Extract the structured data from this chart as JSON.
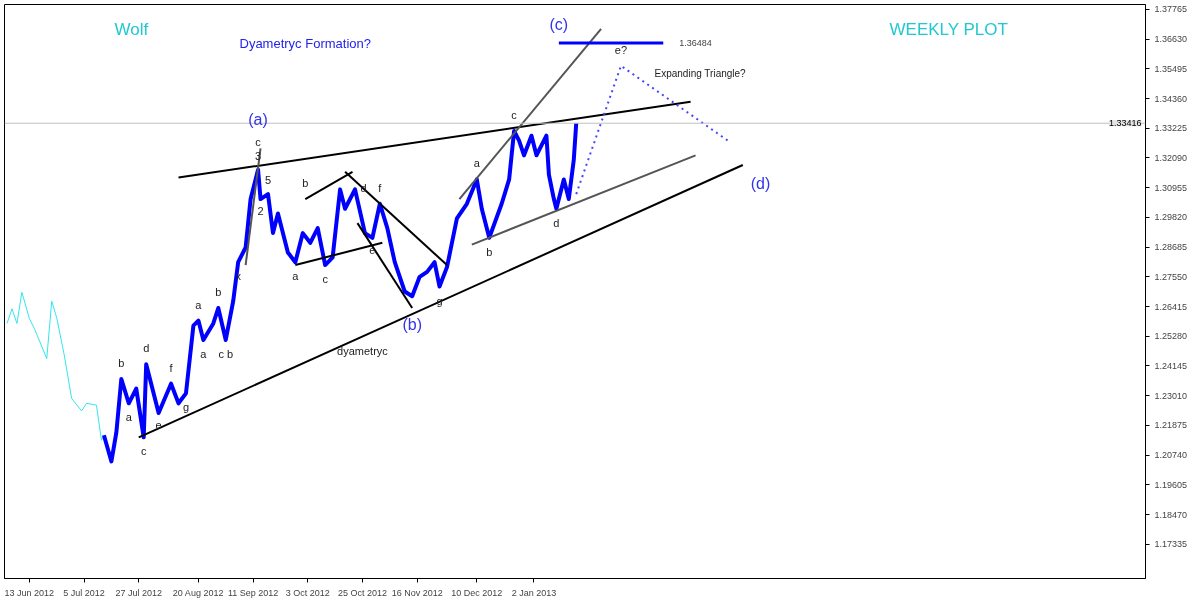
{
  "chart_data": {
    "type": "line",
    "title": "Wolf",
    "subtitle": "WEEKLY PLOT",
    "xlim": [
      "2012-06-03",
      "2013-09-05"
    ],
    "ylim": [
      1.1603,
      1.3795
    ],
    "xticks": [
      {
        "value": "2012-06-13",
        "label": "13 Jun 2012"
      },
      {
        "value": "2012-07-05",
        "label": "5 Jul 2012"
      },
      {
        "value": "2012-07-27",
        "label": "27 Jul 2012"
      },
      {
        "value": "2012-08-20",
        "label": "20 Aug 2012"
      },
      {
        "value": "2012-09-11",
        "label": "11 Sep 2012"
      },
      {
        "value": "2012-10-03",
        "label": "3 Oct 2012"
      },
      {
        "value": "2012-10-25",
        "label": "25 Oct 2012"
      },
      {
        "value": "2012-11-16",
        "label": "16 Nov 2012"
      },
      {
        "value": "2012-12-10",
        "label": "10 Dec 2012"
      },
      {
        "value": "2013-01-02",
        "label": "2 Jan 2013"
      }
    ],
    "yticks": [
      {
        "value": 1.17335,
        "label": "1.17335"
      },
      {
        "value": 1.1847,
        "label": "1.18470"
      },
      {
        "value": 1.19605,
        "label": "1.19605"
      },
      {
        "value": 1.2074,
        "label": "1.20740"
      },
      {
        "value": 1.21875,
        "label": "1.21875"
      },
      {
        "value": 1.2301,
        "label": "1.23010"
      },
      {
        "value": 1.24145,
        "label": "1.24145"
      },
      {
        "value": 1.2528,
        "label": "1.25280"
      },
      {
        "value": 1.26415,
        "label": "1.26415"
      },
      {
        "value": 1.2755,
        "label": "1.27550"
      },
      {
        "value": 1.28685,
        "label": "1.28685"
      },
      {
        "value": 1.2982,
        "label": "1.29820"
      },
      {
        "value": 1.30955,
        "label": "1.30955"
      },
      {
        "value": 1.3209,
        "label": "1.32090"
      },
      {
        "value": 1.33225,
        "label": "1.33225"
      },
      {
        "value": 1.3436,
        "label": "1.34360"
      },
      {
        "value": 1.35495,
        "label": "1.35495"
      },
      {
        "value": 1.3663,
        "label": "1.36630"
      },
      {
        "value": 1.37765,
        "label": "1.37765"
      }
    ],
    "series": [
      {
        "color": "#33e6ee",
        "x": [
          "2012-06-04",
          "2012-06-06",
          "2012-06-08",
          "2012-06-10",
          "2012-06-13",
          "2012-06-15",
          "2012-06-20",
          "2012-06-22",
          "2012-06-24",
          "2012-06-27",
          "2012-06-30",
          "2012-07-04",
          "2012-07-06",
          "2012-07-10",
          "2012-07-12",
          "2012-07-13"
        ],
        "values": [
          1.2577,
          1.2633,
          1.2577,
          1.2696,
          1.2596,
          1.2558,
          1.2443,
          1.2662,
          1.2599,
          1.2458,
          1.2291,
          1.2243,
          1.2272,
          1.2265,
          1.2131,
          1.215
        ]
      },
      {
        "color": "#0000ff",
        "x": [
          "2012-07-13",
          "2012-07-16",
          "2012-07-18",
          "2012-07-20",
          "2012-07-23",
          "2012-07-26",
          "2012-07-29",
          "2012-07-30",
          "2012-08-04",
          "2012-08-09",
          "2012-08-12",
          "2012-08-15",
          "2012-08-18",
          "2012-08-20",
          "2012-08-22",
          "2012-08-26",
          "2012-08-28",
          "2012-08-31",
          "2012-09-03",
          "2012-09-05",
          "2012-09-08",
          "2012-09-10",
          "2012-09-13",
          "2012-09-14",
          "2012-09-17",
          "2012-09-19",
          "2012-09-21",
          "2012-09-25",
          "2012-09-28",
          "2012-10-01",
          "2012-10-04",
          "2012-10-07",
          "2012-10-10",
          "2012-10-13",
          "2012-10-16",
          "2012-10-18",
          "2012-10-22",
          "2012-10-26",
          "2012-10-29",
          "2012-11-01",
          "2012-11-04",
          "2012-11-07",
          "2012-11-11",
          "2012-11-14",
          "2012-11-17",
          "2012-11-20",
          "2012-11-23",
          "2012-11-25",
          "2012-11-28",
          "2012-12-02",
          "2012-12-06",
          "2012-12-10",
          "2012-12-12",
          "2012-12-15",
          "2012-12-20",
          "2012-12-23",
          "2012-12-25",
          "2012-12-27",
          "2012-12-29",
          "2013-01-01",
          "2013-01-03",
          "2013-01-07",
          "2013-01-08",
          "2013-01-10",
          "2013-01-11",
          "2013-01-14",
          "2013-01-16",
          "2013-01-18",
          "2013-01-19"
        ],
        "values": [
          1.215,
          1.205,
          1.2161,
          1.2365,
          1.2272,
          1.2328,
          1.2142,
          1.2421,
          1.2235,
          1.2347,
          1.2272,
          1.231,
          1.2569,
          1.2588,
          1.2514,
          1.2577,
          1.2636,
          1.2514,
          1.2662,
          1.2811,
          1.2867,
          1.3052,
          1.3164,
          1.3052,
          1.3071,
          1.2922,
          1.2997,
          1.2848,
          1.2811,
          1.2922,
          1.2885,
          1.2941,
          1.28,
          1.2829,
          1.3089,
          1.3015,
          1.3089,
          1.2922,
          1.2904,
          1.3034,
          1.2941,
          1.2811,
          1.2699,
          1.2681,
          1.2755,
          1.2774,
          1.2811,
          1.2718,
          1.2792,
          1.2978,
          1.3034,
          1.3127,
          1.3015,
          1.2904,
          1.3034,
          1.3127,
          1.3312,
          1.3275,
          1.3219,
          1.3294,
          1.3219,
          1.3294,
          1.3145,
          1.3052,
          1.3015,
          1.3127,
          1.3052,
          1.3201,
          1.3342
        ]
      },
      {
        "color": "#000000",
        "x": [
          "2012-08-12",
          "2013-03-06"
        ],
        "values": [
          1.3134,
          1.3424
        ]
      },
      {
        "color": "#000000",
        "x": [
          "2012-07-27",
          "2013-03-27"
        ],
        "values": [
          1.2142,
          1.3182
        ]
      },
      {
        "color": "#555555",
        "x": [
          "2012-12-08",
          "2013-03-08"
        ],
        "values": [
          1.2878,
          1.3219
        ]
      },
      {
        "color": "#555555",
        "x": [
          "2012-12-03",
          "2013-01-29"
        ],
        "values": [
          1.3052,
          1.3702
        ]
      },
      {
        "color": "#555555",
        "x": [
          "2012-09-08",
          "2012-09-14"
        ],
        "values": [
          1.28,
          1.3246
        ]
      },
      {
        "color": "#000000",
        "x": [
          "2012-10-02",
          "2012-10-21"
        ],
        "values": [
          1.3052,
          1.3156
        ]
      },
      {
        "color": "#000000",
        "x": [
          "2012-10-18",
          "2012-11-28"
        ],
        "values": [
          1.3156,
          1.28
        ]
      },
      {
        "color": "#000000",
        "x": [
          "2012-10-23",
          "2012-11-14"
        ],
        "values": [
          1.296,
          1.2636
        ]
      },
      {
        "color": "#000000",
        "x": [
          "2012-09-28",
          "2012-11-02"
        ],
        "values": [
          1.28,
          1.2885
        ]
      },
      {
        "color": "#4444ff",
        "line_style": "dotted",
        "x": [
          "2013-01-19",
          "2013-02-06",
          "2013-03-21"
        ],
        "values": [
          1.3071,
          1.3561,
          1.3275
        ]
      },
      {
        "color": "#0000ff",
        "x": [
          "2013-01-12",
          "2013-02-23"
        ],
        "values": [
          1.36484,
          1.36484
        ],
        "value_labels": [
          null,
          "1.36484"
        ]
      }
    ],
    "ref_lines": [
      {
        "axis": "y",
        "value": 1.33416,
        "label": "1.33416",
        "color": "#c0c0c0"
      }
    ],
    "annotations": [
      "Dyametryc Formation?",
      "Expanding Triangle?",
      {
        "text": "(b)",
        "x": "2012-11-14",
        "y": 1.2681
      },
      {
        "text": "(c)",
        "x": "2013-01-12",
        "y": 1.36484
      },
      {
        "text": "(d)",
        "x": "2013-03-27",
        "y": 1.3182
      },
      {
        "text": "3",
        "x": "2012-09-13",
        "y": 1.3164
      },
      {
        "text": "c",
        "x": "2012-09-13",
        "y": 1.3164
      },
      {
        "text": "(a)",
        "x": "2012-09-13",
        "y": 1.3164
      },
      {
        "text": "5",
        "x": "2012-09-17",
        "y": 1.3071
      },
      {
        "text": "x",
        "x": "2012-09-05",
        "y": 1.2811
      },
      {
        "text": "2",
        "x": "2012-09-14",
        "y": 1.3052
      },
      {
        "text": "b",
        "x": "2012-10-02",
        "y": 1.3052
      },
      {
        "text": "d",
        "x": "2012-10-21",
        "y": 1.3156
      },
      {
        "text": "f",
        "x": "2012-11-01",
        "y": 1.3034
      },
      {
        "text": "a",
        "x": "2012-09-28",
        "y": 1.2811
      },
      {
        "text": "c",
        "x": "2012-10-10",
        "y": 1.28
      },
      {
        "text": "e",
        "x": "2012-10-29",
        "y": 1.2904
      },
      {
        "text": "g",
        "x": "2012-11-25",
        "y": 1.2718
      },
      {
        "text": "a",
        "x": "2012-12-10",
        "y": 1.3127
      },
      {
        "text": "b",
        "x": "2012-12-15",
        "y": 1.2904
      },
      {
        "text": "c",
        "x": "2012-12-25",
        "y": 1.3312
      },
      {
        "text": "d",
        "x": "2013-01-11",
        "y": 1.3015
      },
      {
        "text": "e?",
        "x": "2013-02-06",
        "y": 1.3561
      },
      {
        "text": "b",
        "x": "2012-07-20",
        "y": 1.2365
      },
      {
        "text": "d",
        "x": "2012-07-30",
        "y": 1.2421
      },
      {
        "text": "f",
        "x": "2012-08-09",
        "y": 1.2347
      },
      {
        "text": "g",
        "x": "2012-08-15",
        "y": 1.231
      },
      {
        "text": "e",
        "x": "2012-08-04",
        "y": 1.2235
      },
      {
        "text": "a",
        "x": "2012-07-23",
        "y": 1.2272
      },
      {
        "text": "c",
        "x": "2012-07-29",
        "y": 1.2142
      },
      {
        "text": "a",
        "x": "2012-08-20",
        "y": 1.2588
      },
      {
        "text": "b",
        "x": "2012-08-28",
        "y": 1.2636
      },
      {
        "text": "c b",
        "x": "2012-08-31",
        "y": 1.2514
      },
      {
        "text": "a",
        "x": "2012-08-22",
        "y": 1.2514
      },
      {
        "text": "dyametryc",
        "x": "2012-10-25",
        "y": 1.2527
      }
    ]
  }
}
